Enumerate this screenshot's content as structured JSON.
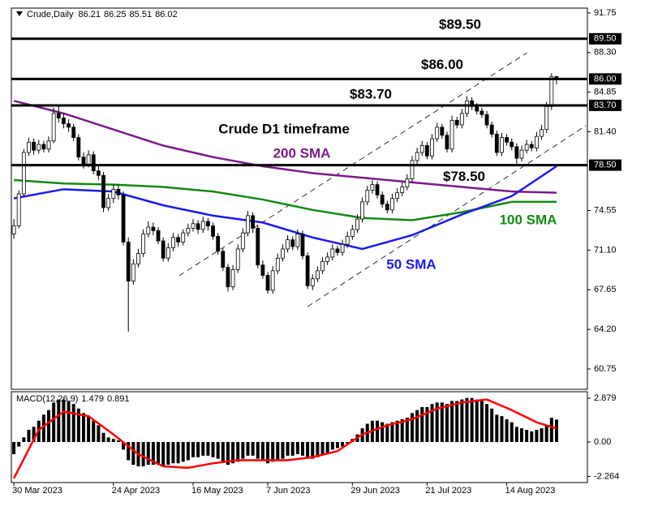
{
  "chart_data": [
    {
      "type": "candlestick",
      "symbol": "Crude,Daily",
      "annotation": "Crude D1 timeframe",
      "categories": [
        "30 Mar 2023",
        null,
        null,
        null,
        null,
        null,
        null,
        null,
        null,
        null,
        null,
        null,
        null,
        null,
        null,
        null,
        null,
        null,
        null,
        null,
        "24 Apr 2023",
        null,
        null,
        null,
        null,
        null,
        null,
        null,
        null,
        null,
        null,
        null,
        null,
        null,
        null,
        null,
        "16 May 2023",
        null,
        null,
        null,
        null,
        null,
        null,
        null,
        null,
        null,
        null,
        null,
        null,
        null,
        null,
        "7 Jun 2023",
        null,
        null,
        null,
        null,
        null,
        null,
        null,
        null,
        null,
        null,
        null,
        null,
        null,
        null,
        null,
        null,
        "29 Jun 2023",
        null,
        null,
        null,
        null,
        null,
        null,
        null,
        null,
        null,
        null,
        null,
        null,
        null,
        null,
        "21 Jul 2023",
        null,
        null,
        null,
        null,
        null,
        null,
        null,
        null,
        null,
        null,
        null,
        null,
        null,
        null,
        null,
        "14 Aug 2023",
        null,
        null,
        null,
        null,
        null,
        null,
        null,
        null,
        null,
        null
      ],
      "candles": [
        [
          72.5,
          73.8,
          72.1,
          73.2
        ],
        [
          73.2,
          76.3,
          73.0,
          76.0
        ],
        [
          76.0,
          79.9,
          75.8,
          79.6
        ],
        [
          79.6,
          80.9,
          79.3,
          80.5
        ],
        [
          80.5,
          80.8,
          79.4,
          79.8
        ],
        [
          79.8,
          80.7,
          79.5,
          80.3
        ],
        [
          80.3,
          80.6,
          79.6,
          79.9
        ],
        [
          79.9,
          81.0,
          79.6,
          80.6
        ],
        [
          80.6,
          83.5,
          80.4,
          83.0
        ],
        [
          83.0,
          83.6,
          82.2,
          82.6
        ],
        [
          82.6,
          83.0,
          81.7,
          82.1
        ],
        [
          82.1,
          82.5,
          81.4,
          81.8
        ],
        [
          81.8,
          82.1,
          80.6,
          80.9
        ],
        [
          80.9,
          81.2,
          78.9,
          79.2
        ],
        [
          79.2,
          79.6,
          78.2,
          78.6
        ],
        [
          78.6,
          79.8,
          78.3,
          79.4
        ],
        [
          79.4,
          79.7,
          77.7,
          78.0
        ],
        [
          78.0,
          78.4,
          77.2,
          77.6
        ],
        [
          77.6,
          77.9,
          74.4,
          74.8
        ],
        [
          74.8,
          76.0,
          74.5,
          75.6
        ],
        [
          75.6,
          76.8,
          75.2,
          76.4
        ],
        [
          76.4,
          76.8,
          75.5,
          75.9
        ],
        [
          75.9,
          76.2,
          71.5,
          71.8
        ],
        [
          71.8,
          72.2,
          64.0,
          68.4
        ],
        [
          68.4,
          70.3,
          68.1,
          69.9
        ],
        [
          69.9,
          71.2,
          69.6,
          70.8
        ],
        [
          70.8,
          72.9,
          70.5,
          72.5
        ],
        [
          72.5,
          73.6,
          72.2,
          73.1
        ],
        [
          73.1,
          73.5,
          72.4,
          72.8
        ],
        [
          72.8,
          73.1,
          71.6,
          71.9
        ],
        [
          71.9,
          72.2,
          70.1,
          70.4
        ],
        [
          70.4,
          71.7,
          70.1,
          71.3
        ],
        [
          71.3,
          72.6,
          71.0,
          72.2
        ],
        [
          72.2,
          72.5,
          71.4,
          71.8
        ],
        [
          71.8,
          72.9,
          71.5,
          72.6
        ],
        [
          72.6,
          73.4,
          72.3,
          73.0
        ],
        [
          73.0,
          73.8,
          72.7,
          73.4
        ],
        [
          73.4,
          73.7,
          72.5,
          72.9
        ],
        [
          72.9,
          74.0,
          72.6,
          73.6
        ],
        [
          73.6,
          73.9,
          72.8,
          73.2
        ],
        [
          73.2,
          73.5,
          72.0,
          72.3
        ],
        [
          72.3,
          72.6,
          70.7,
          71.0
        ],
        [
          71.0,
          71.3,
          69.3,
          69.6
        ],
        [
          69.6,
          69.9,
          67.5,
          67.9
        ],
        [
          67.9,
          69.8,
          67.6,
          69.4
        ],
        [
          69.4,
          71.6,
          69.1,
          71.2
        ],
        [
          71.2,
          73.0,
          70.9,
          72.6
        ],
        [
          72.6,
          74.5,
          72.3,
          74.1
        ],
        [
          74.1,
          74.4,
          72.6,
          73.0
        ],
        [
          73.0,
          73.3,
          69.5,
          69.8
        ],
        [
          69.8,
          70.2,
          68.6,
          68.9
        ],
        [
          68.9,
          69.2,
          67.3,
          67.6
        ],
        [
          67.6,
          69.7,
          67.3,
          69.3
        ],
        [
          69.3,
          70.8,
          69.0,
          70.4
        ],
        [
          70.4,
          71.6,
          70.1,
          71.2
        ],
        [
          71.2,
          72.4,
          70.9,
          72.0
        ],
        [
          72.0,
          72.3,
          71.1,
          71.4
        ],
        [
          71.4,
          72.9,
          71.1,
          72.5
        ],
        [
          72.5,
          72.8,
          70.3,
          70.6
        ],
        [
          70.6,
          70.9,
          67.7,
          68.0
        ],
        [
          68.0,
          69.0,
          67.6,
          68.6
        ],
        [
          68.6,
          69.7,
          68.3,
          69.3
        ],
        [
          69.3,
          70.5,
          69.0,
          70.1
        ],
        [
          70.1,
          70.9,
          69.8,
          70.5
        ],
        [
          70.5,
          71.6,
          70.2,
          71.2
        ],
        [
          71.2,
          71.5,
          70.6,
          70.9
        ],
        [
          70.9,
          72.0,
          70.6,
          71.6
        ],
        [
          71.6,
          72.7,
          71.3,
          72.3
        ],
        [
          72.3,
          73.3,
          72.0,
          72.9
        ],
        [
          72.9,
          74.2,
          72.6,
          73.8
        ],
        [
          73.8,
          75.7,
          73.5,
          75.3
        ],
        [
          75.3,
          76.7,
          75.0,
          76.3
        ],
        [
          76.3,
          77.2,
          76.0,
          76.8
        ],
        [
          76.8,
          77.1,
          75.6,
          75.9
        ],
        [
          75.9,
          76.2,
          74.8,
          75.1
        ],
        [
          75.1,
          75.4,
          74.3,
          74.6
        ],
        [
          74.6,
          76.0,
          74.3,
          75.6
        ],
        [
          75.6,
          76.5,
          75.3,
          76.1
        ],
        [
          76.1,
          77.0,
          75.8,
          76.6
        ],
        [
          76.6,
          77.7,
          76.3,
          77.3
        ],
        [
          77.3,
          79.3,
          77.0,
          78.9
        ],
        [
          78.9,
          80.0,
          78.6,
          79.6
        ],
        [
          79.6,
          80.6,
          79.3,
          80.2
        ],
        [
          80.2,
          80.5,
          79.0,
          79.3
        ],
        [
          79.3,
          81.2,
          79.0,
          80.8
        ],
        [
          80.8,
          82.2,
          80.5,
          81.8
        ],
        [
          81.8,
          82.1,
          80.8,
          81.1
        ],
        [
          81.1,
          81.4,
          79.6,
          79.9
        ],
        [
          79.9,
          82.8,
          79.6,
          82.4
        ],
        [
          82.4,
          82.7,
          81.7,
          82.0
        ],
        [
          82.0,
          83.4,
          81.7,
          83.0
        ],
        [
          83.0,
          84.5,
          82.7,
          84.1
        ],
        [
          84.1,
          84.4,
          83.3,
          83.6
        ],
        [
          83.6,
          83.9,
          82.9,
          83.2
        ],
        [
          83.2,
          83.5,
          82.6,
          82.9
        ],
        [
          82.9,
          83.2,
          81.7,
          82.0
        ],
        [
          82.0,
          82.3,
          80.9,
          81.2
        ],
        [
          81.2,
          81.5,
          79.3,
          79.6
        ],
        [
          79.6,
          81.3,
          79.3,
          80.9
        ],
        [
          80.9,
          81.2,
          80.2,
          80.5
        ],
        [
          80.5,
          80.8,
          79.8,
          80.1
        ],
        [
          80.1,
          80.4,
          78.6,
          79.1
        ],
        [
          79.1,
          80.2,
          78.8,
          79.8
        ],
        [
          79.8,
          80.7,
          79.5,
          80.3
        ],
        [
          80.3,
          80.6,
          79.7,
          80.0
        ],
        [
          80.0,
          81.4,
          79.7,
          81.0
        ],
        [
          81.0,
          82.0,
          80.7,
          81.6
        ],
        [
          81.6,
          84.0,
          81.3,
          83.6
        ],
        [
          83.6,
          86.5,
          83.3,
          86.2
        ],
        [
          86.21,
          86.25,
          85.51,
          86.02
        ]
      ],
      "xlim": [
        -0.5,
        115.2
      ],
      "ylim": [
        58.98,
        92.17
      ],
      "yticks": [
        91.75,
        {
          "value": 88.3,
          "label": "88.30"
        },
        84.85,
        {
          "value": 81.4,
          "label": "81.40"
        },
        74.55,
        {
          "value": 71.1,
          "label": "71.10"
        },
        67.65,
        {
          "value": 64.2,
          "label": "64.20"
        },
        60.75
      ],
      "levels": [
        {
          "value": 89.5,
          "label": "$89.50",
          "axis_label": "89.50"
        },
        {
          "value": 86.0,
          "label": "$86.00",
          "axis_label": "86.00"
        },
        {
          "value": 83.7,
          "label": "$83.70",
          "axis_label": "83.70"
        },
        {
          "value": 78.5,
          "label": "$78.50",
          "axis_label": "78.50"
        }
      ],
      "series": [
        {
          "name": "200 SMA",
          "color": "#7b1a8a",
          "x": [
            0,
            10,
            20,
            30,
            40,
            50,
            60,
            70,
            80,
            90,
            100,
            109
          ],
          "values": [
            84.1,
            83.0,
            81.6,
            80.2,
            79.2,
            78.4,
            77.8,
            77.4,
            77.0,
            76.6,
            76.2,
            76.1
          ]
        },
        {
          "name": "100 SMA",
          "color": "#118a11",
          "x": [
            0,
            10,
            20,
            30,
            40,
            50,
            60,
            70,
            80,
            90,
            100,
            109
          ],
          "values": [
            77.2,
            76.9,
            76.8,
            76.6,
            76.2,
            75.5,
            74.6,
            73.9,
            73.7,
            74.4,
            75.3,
            75.3
          ]
        },
        {
          "name": "50 SMA",
          "color": "#1a1aee",
          "x": [
            0,
            10,
            20,
            30,
            40,
            50,
            60,
            70,
            80,
            90,
            100,
            109
          ],
          "values": [
            75.6,
            76.4,
            76.2,
            75.0,
            74.1,
            73.5,
            72.2,
            71.2,
            72.4,
            74.2,
            75.8,
            78.4
          ]
        }
      ],
      "trendlines": [
        {
          "x": [
            33.2,
            103.1
          ],
          "values": [
            68.87,
            88.29
          ]
        },
        {
          "x": [
            59,
            114.9
          ],
          "values": [
            66.18,
            81.93
          ]
        }
      ]
    },
    {
      "type": "macd",
      "name": "MACD(12,26,9)",
      "xlim": [
        -0.5,
        115.2
      ],
      "ylim": [
        -2.67,
        3.31
      ],
      "yticks": [
        2.879,
        {
          "value": 0,
          "label": "0.00"
        },
        -2.264
      ],
      "histogram": {
        "color": "#000000",
        "values": [
          -0.8,
          -0.3,
          0.3,
          0.8,
          1.0,
          1.4,
          1.8,
          2.1,
          2.6,
          2.8,
          2.8,
          2.7,
          2.5,
          2.2,
          1.9,
          1.7,
          1.4,
          1.1,
          0.6,
          0.3,
          0.2,
          0.1,
          -0.5,
          -1.2,
          -1.5,
          -1.6,
          -1.6,
          -1.5,
          -1.5,
          -1.5,
          -1.6,
          -1.5,
          -1.4,
          -1.4,
          -1.3,
          -1.2,
          -1.0,
          -1.0,
          -0.9,
          -0.9,
          -1.0,
          -1.1,
          -1.3,
          -1.5,
          -1.4,
          -1.3,
          -1.1,
          -0.9,
          -0.9,
          -1.1,
          -1.2,
          -1.4,
          -1.3,
          -1.2,
          -1.1,
          -0.9,
          -0.9,
          -0.8,
          -0.9,
          -1.1,
          -1.1,
          -1.0,
          -0.8,
          -0.7,
          -0.5,
          -0.4,
          -0.3,
          -0.1,
          0.2,
          0.5,
          0.9,
          1.2,
          1.4,
          1.4,
          1.3,
          1.2,
          1.3,
          1.4,
          1.5,
          1.6,
          1.9,
          2.1,
          2.3,
          2.3,
          2.5,
          2.6,
          2.6,
          2.5,
          2.7,
          2.7,
          2.8,
          2.9,
          2.9,
          2.8,
          2.7,
          2.5,
          2.2,
          1.8,
          1.7,
          1.5,
          1.3,
          1.0,
          0.9,
          0.8,
          0.7,
          0.8,
          0.9,
          1.1,
          1.6,
          1.479
        ]
      },
      "signal": {
        "color": "#ff0000",
        "x": [
          0,
          5,
          10,
          15,
          20,
          25,
          30,
          35,
          40,
          45,
          50,
          55,
          60,
          65,
          70,
          75,
          80,
          85,
          90,
          95,
          100,
          105,
          109
        ],
        "values": [
          -2.4,
          0.8,
          2.0,
          1.7,
          0.5,
          -0.8,
          -1.6,
          -1.7,
          -1.4,
          -1.2,
          -1.2,
          -1.2,
          -1.0,
          -0.6,
          0.5,
          1.1,
          1.5,
          2.2,
          2.6,
          2.8,
          2.1,
          1.3,
          0.891
        ]
      }
    }
  ]
}
